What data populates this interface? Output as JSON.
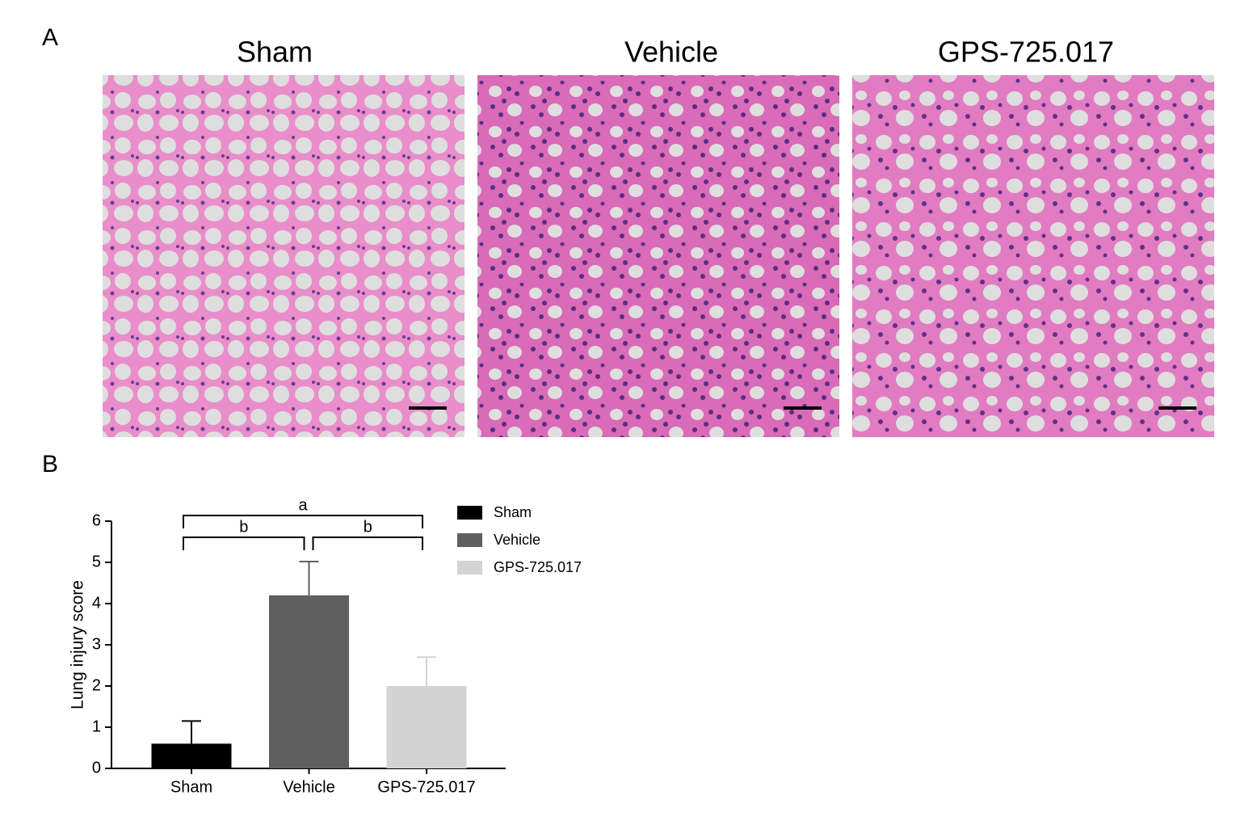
{
  "panel_a": {
    "label": "A",
    "titles": [
      "Sham",
      "Vehicle",
      "GPS-725.017"
    ]
  },
  "panel_b_label": "B",
  "chart_data": {
    "type": "bar",
    "ylabel": "Lung injury score",
    "categories": [
      "Sham",
      "Vehicle",
      "GPS-725.017"
    ],
    "values": [
      0.6,
      4.2,
      2.0
    ],
    "errors": [
      0.55,
      0.82,
      0.7
    ],
    "colors": [
      "#000000",
      "#5f5f5f",
      "#d3d3d3"
    ],
    "ylim": [
      0,
      6
    ],
    "yticks": [
      0,
      1,
      2,
      3,
      4,
      5,
      6
    ],
    "legend": [
      "Sham",
      "Vehicle",
      "GPS-725.017"
    ],
    "annotations": [
      "a",
      "b",
      "b"
    ]
  }
}
